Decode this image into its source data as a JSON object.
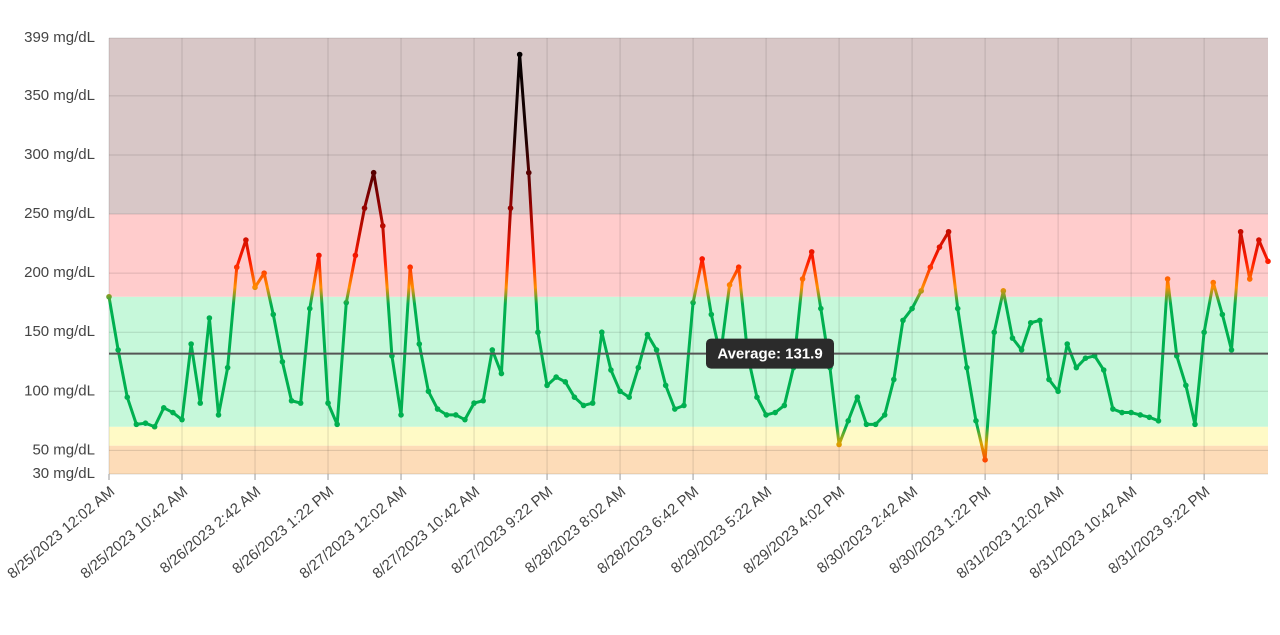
{
  "chart_data": {
    "type": "line",
    "categories": [
      "8/25/2023 12:02 AM",
      null,
      null,
      null,
      null,
      null,
      null,
      null,
      "8/25/2023 10:42 AM",
      null,
      null,
      null,
      null,
      null,
      null,
      null,
      "8/26/2023 2:42 AM",
      null,
      null,
      null,
      null,
      null,
      null,
      null,
      "8/26/2023 1:22 PM",
      null,
      null,
      null,
      null,
      null,
      null,
      null,
      "8/27/2023 12:02 AM",
      null,
      null,
      null,
      null,
      null,
      null,
      null,
      "8/27/2023 10:42 AM",
      null,
      null,
      null,
      null,
      null,
      null,
      null,
      "8/27/2023 9:22 PM",
      null,
      null,
      null,
      null,
      null,
      null,
      null,
      "8/28/2023 8:02 AM",
      null,
      null,
      null,
      null,
      null,
      null,
      null,
      "8/28/2023 6:42 PM",
      null,
      null,
      null,
      null,
      null,
      null,
      null,
      "8/29/2023 5:22 AM",
      null,
      null,
      null,
      null,
      null,
      null,
      null,
      "8/29/2023 4:02 PM",
      null,
      null,
      null,
      null,
      null,
      null,
      null,
      "8/30/2023 2:42 AM",
      null,
      null,
      null,
      null,
      null,
      null,
      null,
      "8/30/2023 1:22 PM",
      null,
      null,
      null,
      null,
      null,
      null,
      null,
      "8/31/2023 12:02 AM",
      null,
      null,
      null,
      null,
      null,
      null,
      null,
      "8/31/2023 10:42 AM",
      null,
      null,
      null,
      null,
      null,
      null,
      null,
      "8/31/2023 9:22 PM",
      null,
      null,
      null,
      null,
      null,
      null,
      null
    ],
    "values": [
      180,
      135,
      95,
      72,
      73,
      70,
      86,
      82,
      76,
      140,
      90,
      162,
      80,
      120,
      205,
      228,
      188,
      200,
      165,
      125,
      92,
      90,
      170,
      215,
      90,
      72,
      175,
      215,
      255,
      285,
      240,
      130,
      80,
      205,
      140,
      100,
      85,
      80,
      80,
      76,
      90,
      92,
      135,
      115,
      255,
      385,
      285,
      150,
      105,
      112,
      108,
      95,
      88,
      90,
      150,
      118,
      100,
      95,
      120,
      148,
      135,
      105,
      85,
      88,
      175,
      212,
      165,
      130,
      190,
      205,
      130,
      95,
      80,
      82,
      88,
      120,
      195,
      218,
      170,
      120,
      55,
      75,
      95,
      72,
      72,
      80,
      110,
      160,
      170,
      185,
      205,
      222,
      235,
      170,
      120,
      75,
      42,
      150,
      185,
      145,
      135,
      158,
      160,
      110,
      100,
      140,
      120,
      128,
      130,
      118,
      85,
      82,
      82,
      80,
      78,
      75,
      195,
      130,
      105,
      72,
      150,
      192,
      165,
      135,
      235,
      195,
      228,
      210
    ],
    "ylim": [
      30,
      399
    ],
    "yticks": [
      {
        "value": 30,
        "label": "30 mg/dL"
      },
      {
        "value": 50,
        "label": "50 mg/dL"
      },
      {
        "value": 100,
        "label": "100 mg/dL"
      },
      {
        "value": 150,
        "label": "150 mg/dL"
      },
      {
        "value": 200,
        "label": "200 mg/dL"
      },
      {
        "value": 250,
        "label": "250 mg/dL"
      },
      {
        "value": 300,
        "label": "300 mg/dL"
      },
      {
        "value": 350,
        "label": "350 mg/dL"
      },
      {
        "value": 399,
        "label": "399 mg/dL"
      }
    ],
    "grid": true,
    "bands": [
      {
        "from": 30,
        "to": 54,
        "color": "#fddcb8"
      },
      {
        "from": 54,
        "to": 70,
        "color": "#fffac6"
      },
      {
        "from": 70,
        "to": 180,
        "color": "#c6f8da"
      },
      {
        "from": 180,
        "to": 250,
        "color": "#ffcccc"
      },
      {
        "from": 250,
        "to": 399,
        "color": "#d8c7c7"
      }
    ],
    "color_stops": [
      {
        "value": 399,
        "color": "#000000"
      },
      {
        "value": 315,
        "color": "#1a0000"
      },
      {
        "value": 260,
        "color": "#8b0000"
      },
      {
        "value": 210,
        "color": "#ff1a00"
      },
      {
        "value": 188,
        "color": "#ff8c00"
      },
      {
        "value": 174,
        "color": "#00b050"
      },
      {
        "value": 70,
        "color": "#00b050"
      },
      {
        "value": 56,
        "color": "#d9a400"
      },
      {
        "value": 40,
        "color": "#ff4000"
      }
    ],
    "average": {
      "value": 131.9,
      "label": "Average: 131.9"
    }
  }
}
